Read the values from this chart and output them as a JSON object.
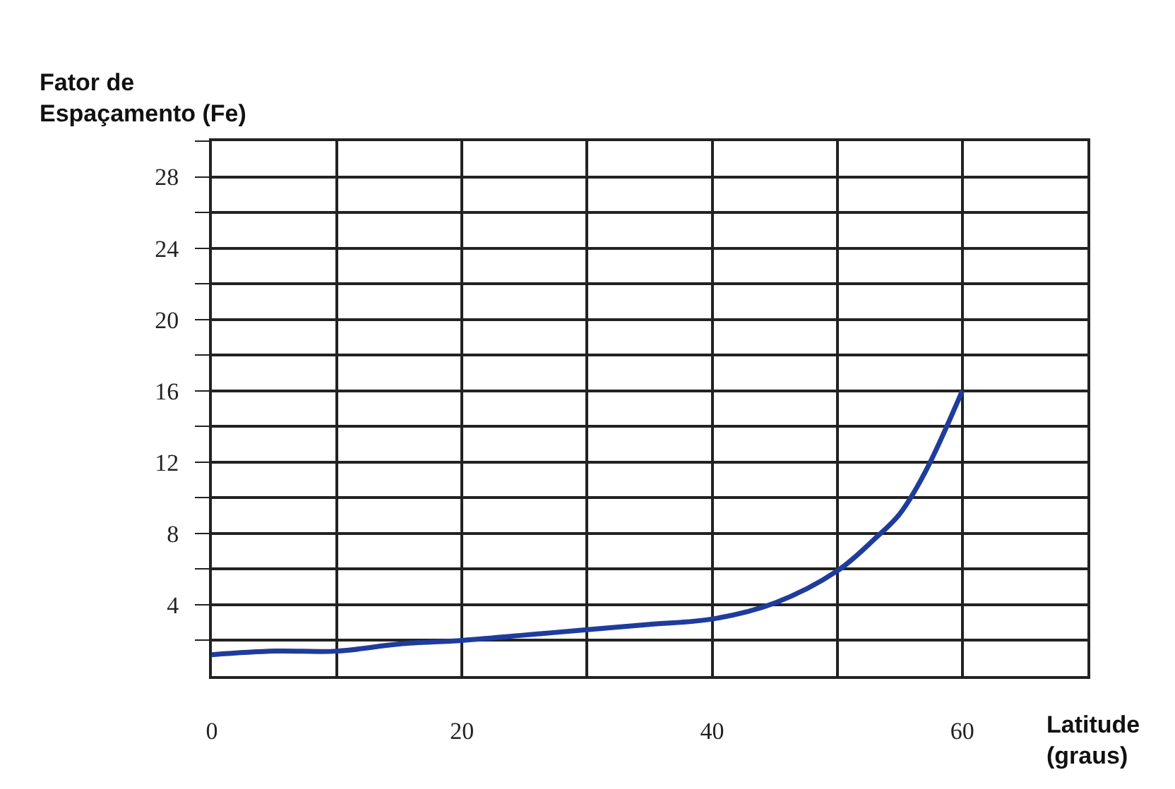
{
  "chart_data": {
    "type": "line",
    "ylabel": "Fator de\nEspaçamento (Fe)",
    "xlabel": "Latitude\n(graus)",
    "x": [
      0,
      5,
      10,
      15,
      20,
      25,
      30,
      35,
      40,
      45,
      50,
      53,
      55,
      57,
      60
    ],
    "series": [
      {
        "color": "#1f3c9c",
        "values": [
          1.2,
          1.4,
          1.4,
          1.8,
          2.0,
          2.3,
          2.6,
          2.9,
          3.2,
          4.1,
          5.9,
          7.7,
          9.1,
          11.4,
          16
        ]
      }
    ],
    "xlim": [
      0,
      70
    ],
    "ylim": [
      0,
      30
    ],
    "xticks": [
      0,
      {
        "value": 10,
        "label": null
      },
      20,
      {
        "value": 30,
        "label": null
      },
      40,
      {
        "value": 50,
        "label": null
      },
      60,
      {
        "value": 70,
        "label": null
      }
    ],
    "yticks": [
      {
        "value": 2,
        "label": null
      },
      4,
      {
        "value": 6,
        "label": null
      },
      8,
      {
        "value": 10,
        "label": null
      },
      12,
      {
        "value": 14,
        "label": null
      },
      16,
      {
        "value": 18,
        "label": null
      },
      20,
      {
        "value": 22,
        "label": null
      },
      24,
      {
        "value": 26,
        "label": null
      },
      28,
      {
        "value": 30,
        "label": null
      }
    ],
    "grid": true,
    "marker": "none",
    "line_style": "solid",
    "legend": false
  }
}
